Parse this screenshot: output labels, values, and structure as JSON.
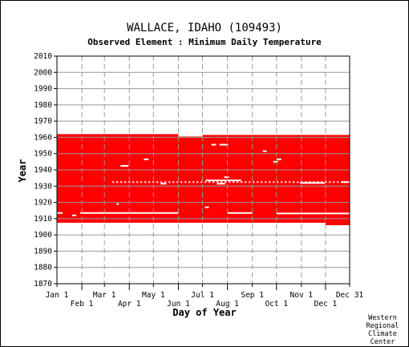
{
  "chart_data": {
    "type": "heatmap",
    "title": "WALLACE, IDAHO   (109493)",
    "subtitle": "Observed Element : Minimum Daily Temperature",
    "xlabel": "Day of Year",
    "ylabel": "Year",
    "xlim": [
      1,
      365
    ],
    "ylim": [
      1870,
      2010
    ],
    "grid": true,
    "fill_color": "#ff0000",
    "grid_color": "#999999",
    "x_ticks_upper": [
      {
        "label": "Jan 1",
        "day": 1
      },
      {
        "label": "Mar 1",
        "day": 60
      },
      {
        "label": "May 1",
        "day": 121
      },
      {
        "label": "Jul 1",
        "day": 182
      },
      {
        "label": "Sep 1",
        "day": 244
      },
      {
        "label": "Nov 1",
        "day": 305
      },
      {
        "label": "Dec 31",
        "day": 365
      }
    ],
    "x_ticks_lower": [
      {
        "label": "Feb 1",
        "day": 32
      },
      {
        "label": "Apr 1",
        "day": 91
      },
      {
        "label": "Jun 1",
        "day": 152
      },
      {
        "label": "Aug 1",
        "day": 213
      },
      {
        "label": "Oct 1",
        "day": 274
      },
      {
        "label": "Dec 1",
        "day": 335
      }
    ],
    "y_ticks": [
      1870,
      1880,
      1890,
      1900,
      1910,
      1920,
      1930,
      1940,
      1950,
      1960,
      1970,
      1980,
      1990,
      2000,
      2010
    ],
    "observed_blocks": [
      {
        "day_start": 1,
        "day_end": 152,
        "year_start": 1907.5,
        "year_end": 1962
      },
      {
        "day_start": 152,
        "day_end": 335,
        "year_start": 1907.5,
        "year_end": 1961.5
      },
      {
        "day_start": 335,
        "day_end": 365,
        "year_start": 1906,
        "year_end": 1961.5
      }
    ],
    "missing_segments": [
      {
        "year": 1913.5,
        "day_start": 1,
        "day_end": 8
      },
      {
        "year": 1913.5,
        "day_start": 30,
        "day_end": 152
      },
      {
        "year": 1913.5,
        "day_start": 213,
        "day_end": 244
      },
      {
        "year": 1913.2,
        "day_start": 274,
        "day_end": 365
      },
      {
        "year": 1932.5,
        "day_start": 70,
        "day_end": 365,
        "dotted": true
      },
      {
        "year": 1931.5,
        "day_start": 130,
        "day_end": 137
      },
      {
        "year": 1931.5,
        "day_start": 200,
        "day_end": 210
      },
      {
        "year": 1933.5,
        "day_start": 186,
        "day_end": 230
      },
      {
        "year": 1932.0,
        "day_start": 303,
        "day_end": 334
      },
      {
        "year": 1932.5,
        "day_start": 355,
        "day_end": 365
      },
      {
        "year": 1935.5,
        "day_start": 209,
        "day_end": 215
      },
      {
        "year": 1942.5,
        "day_start": 80,
        "day_end": 90
      },
      {
        "year": 1946.5,
        "day_start": 109,
        "day_end": 115
      },
      {
        "year": 1946.5,
        "day_start": 274,
        "day_end": 280
      },
      {
        "year": 1945.0,
        "day_start": 270,
        "day_end": 276
      },
      {
        "year": 1951.5,
        "day_start": 257,
        "day_end": 262
      },
      {
        "year": 1955.5,
        "day_start": 193,
        "day_end": 199
      },
      {
        "year": 1955.5,
        "day_start": 203,
        "day_end": 214
      },
      {
        "year": 1961.0,
        "day_start": 152,
        "day_end": 182
      },
      {
        "year": 1912.0,
        "day_start": 20,
        "day_end": 25
      },
      {
        "year": 1917.0,
        "day_start": 185,
        "day_end": 190
      },
      {
        "year": 1919.0,
        "day_start": 75,
        "day_end": 78
      }
    ]
  },
  "credit": [
    "Western",
    "Regional",
    "Climate",
    "Center"
  ]
}
